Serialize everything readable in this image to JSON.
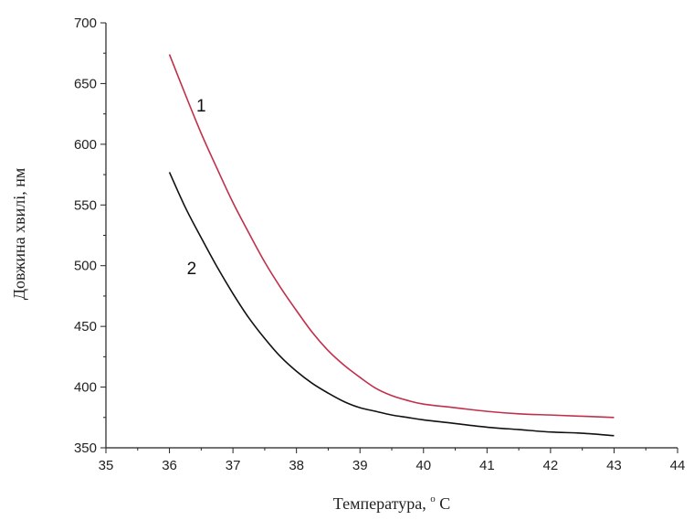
{
  "chart_data": {
    "type": "line",
    "title": "",
    "xlabel": "Температура, ",
    "xlabel_degree": "o",
    "xlabel_unit": " C",
    "ylabel": "Довжина хвилі, нм",
    "xlim": [
      35,
      44
    ],
    "ylim": [
      350,
      700
    ],
    "xticks": [
      "35",
      "36",
      "37",
      "38",
      "39",
      "40",
      "41",
      "42",
      "43",
      "44"
    ],
    "yticks": [
      "350",
      "400",
      "450",
      "500",
      "550",
      "600",
      "650",
      "700"
    ],
    "grid": false,
    "series": [
      {
        "name": "1",
        "color": "#c0304a",
        "x": [
          36,
          36.25,
          36.5,
          36.75,
          37,
          37.25,
          37.5,
          37.75,
          38,
          38.25,
          38.5,
          38.75,
          39,
          39.25,
          39.5,
          39.75,
          40,
          40.5,
          41,
          41.5,
          42,
          42.5,
          43
        ],
        "y": [
          674,
          641,
          609,
          580,
          552,
          527,
          503,
          482,
          463,
          445,
          430,
          418,
          408,
          399,
          393,
          389,
          386,
          383,
          380,
          378,
          377,
          376,
          375
        ]
      },
      {
        "name": "2",
        "color": "#111111",
        "x": [
          36,
          36.25,
          36.5,
          36.75,
          37,
          37.25,
          37.5,
          37.75,
          38,
          38.25,
          38.5,
          38.75,
          39,
          39.25,
          39.5,
          39.75,
          40,
          40.5,
          41,
          41.5,
          42,
          42.5,
          43
        ],
        "y": [
          577,
          548,
          523,
          499,
          477,
          457,
          440,
          425,
          413,
          403,
          395,
          388,
          383,
          380,
          377,
          375,
          373,
          370,
          367,
          365,
          363,
          362,
          360
        ]
      }
    ],
    "labels": [
      {
        "text": "1",
        "x": 36.5,
        "y": 627
      },
      {
        "text": "2",
        "x": 36.35,
        "y": 493
      }
    ]
  }
}
